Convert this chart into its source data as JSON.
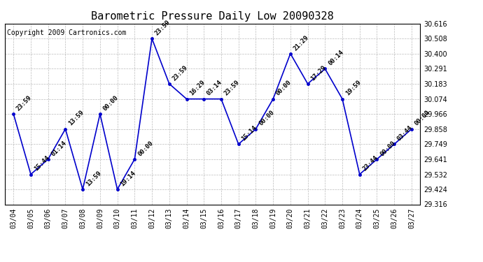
{
  "title": "Barometric Pressure Daily Low 20090328",
  "copyright": "Copyright 2009 Cartronics.com",
  "dates": [
    "03/04",
    "03/05",
    "03/06",
    "03/07",
    "03/08",
    "03/09",
    "03/10",
    "03/11",
    "03/12",
    "03/13",
    "03/14",
    "03/15",
    "03/16",
    "03/17",
    "03/18",
    "03/19",
    "03/20",
    "03/21",
    "03/22",
    "03/23",
    "03/24",
    "03/25",
    "03/26",
    "03/27"
  ],
  "values": [
    29.966,
    29.532,
    29.641,
    29.858,
    29.424,
    29.966,
    29.424,
    29.641,
    30.508,
    30.183,
    30.074,
    30.074,
    30.074,
    29.749,
    29.858,
    30.074,
    30.4,
    30.183,
    30.291,
    30.074,
    29.532,
    29.641,
    29.749,
    29.858
  ],
  "annotations": [
    "23:59",
    "15:44",
    "01:14",
    "13:59",
    "13:59",
    "00:00",
    "19:14",
    "00:00",
    "23:59",
    "23:59",
    "16:29",
    "03:14",
    "23:59",
    "15:14",
    "00:00",
    "00:00",
    "21:29",
    "17:29",
    "00:14",
    "19:59",
    "23:44",
    "00:00",
    "03:44",
    "00:00"
  ],
  "ylim": [
    29.316,
    30.616
  ],
  "yticks": [
    29.316,
    29.424,
    29.532,
    29.641,
    29.749,
    29.858,
    29.966,
    30.074,
    30.183,
    30.291,
    30.4,
    30.508,
    30.616
  ],
  "line_color": "#0000cc",
  "marker_color": "#0000cc",
  "grid_color": "#bbbbbb",
  "bg_color": "#ffffff",
  "title_fontsize": 11,
  "annot_fontsize": 6.5,
  "copyright_fontsize": 7,
  "xtick_fontsize": 7,
  "ytick_fontsize": 7
}
